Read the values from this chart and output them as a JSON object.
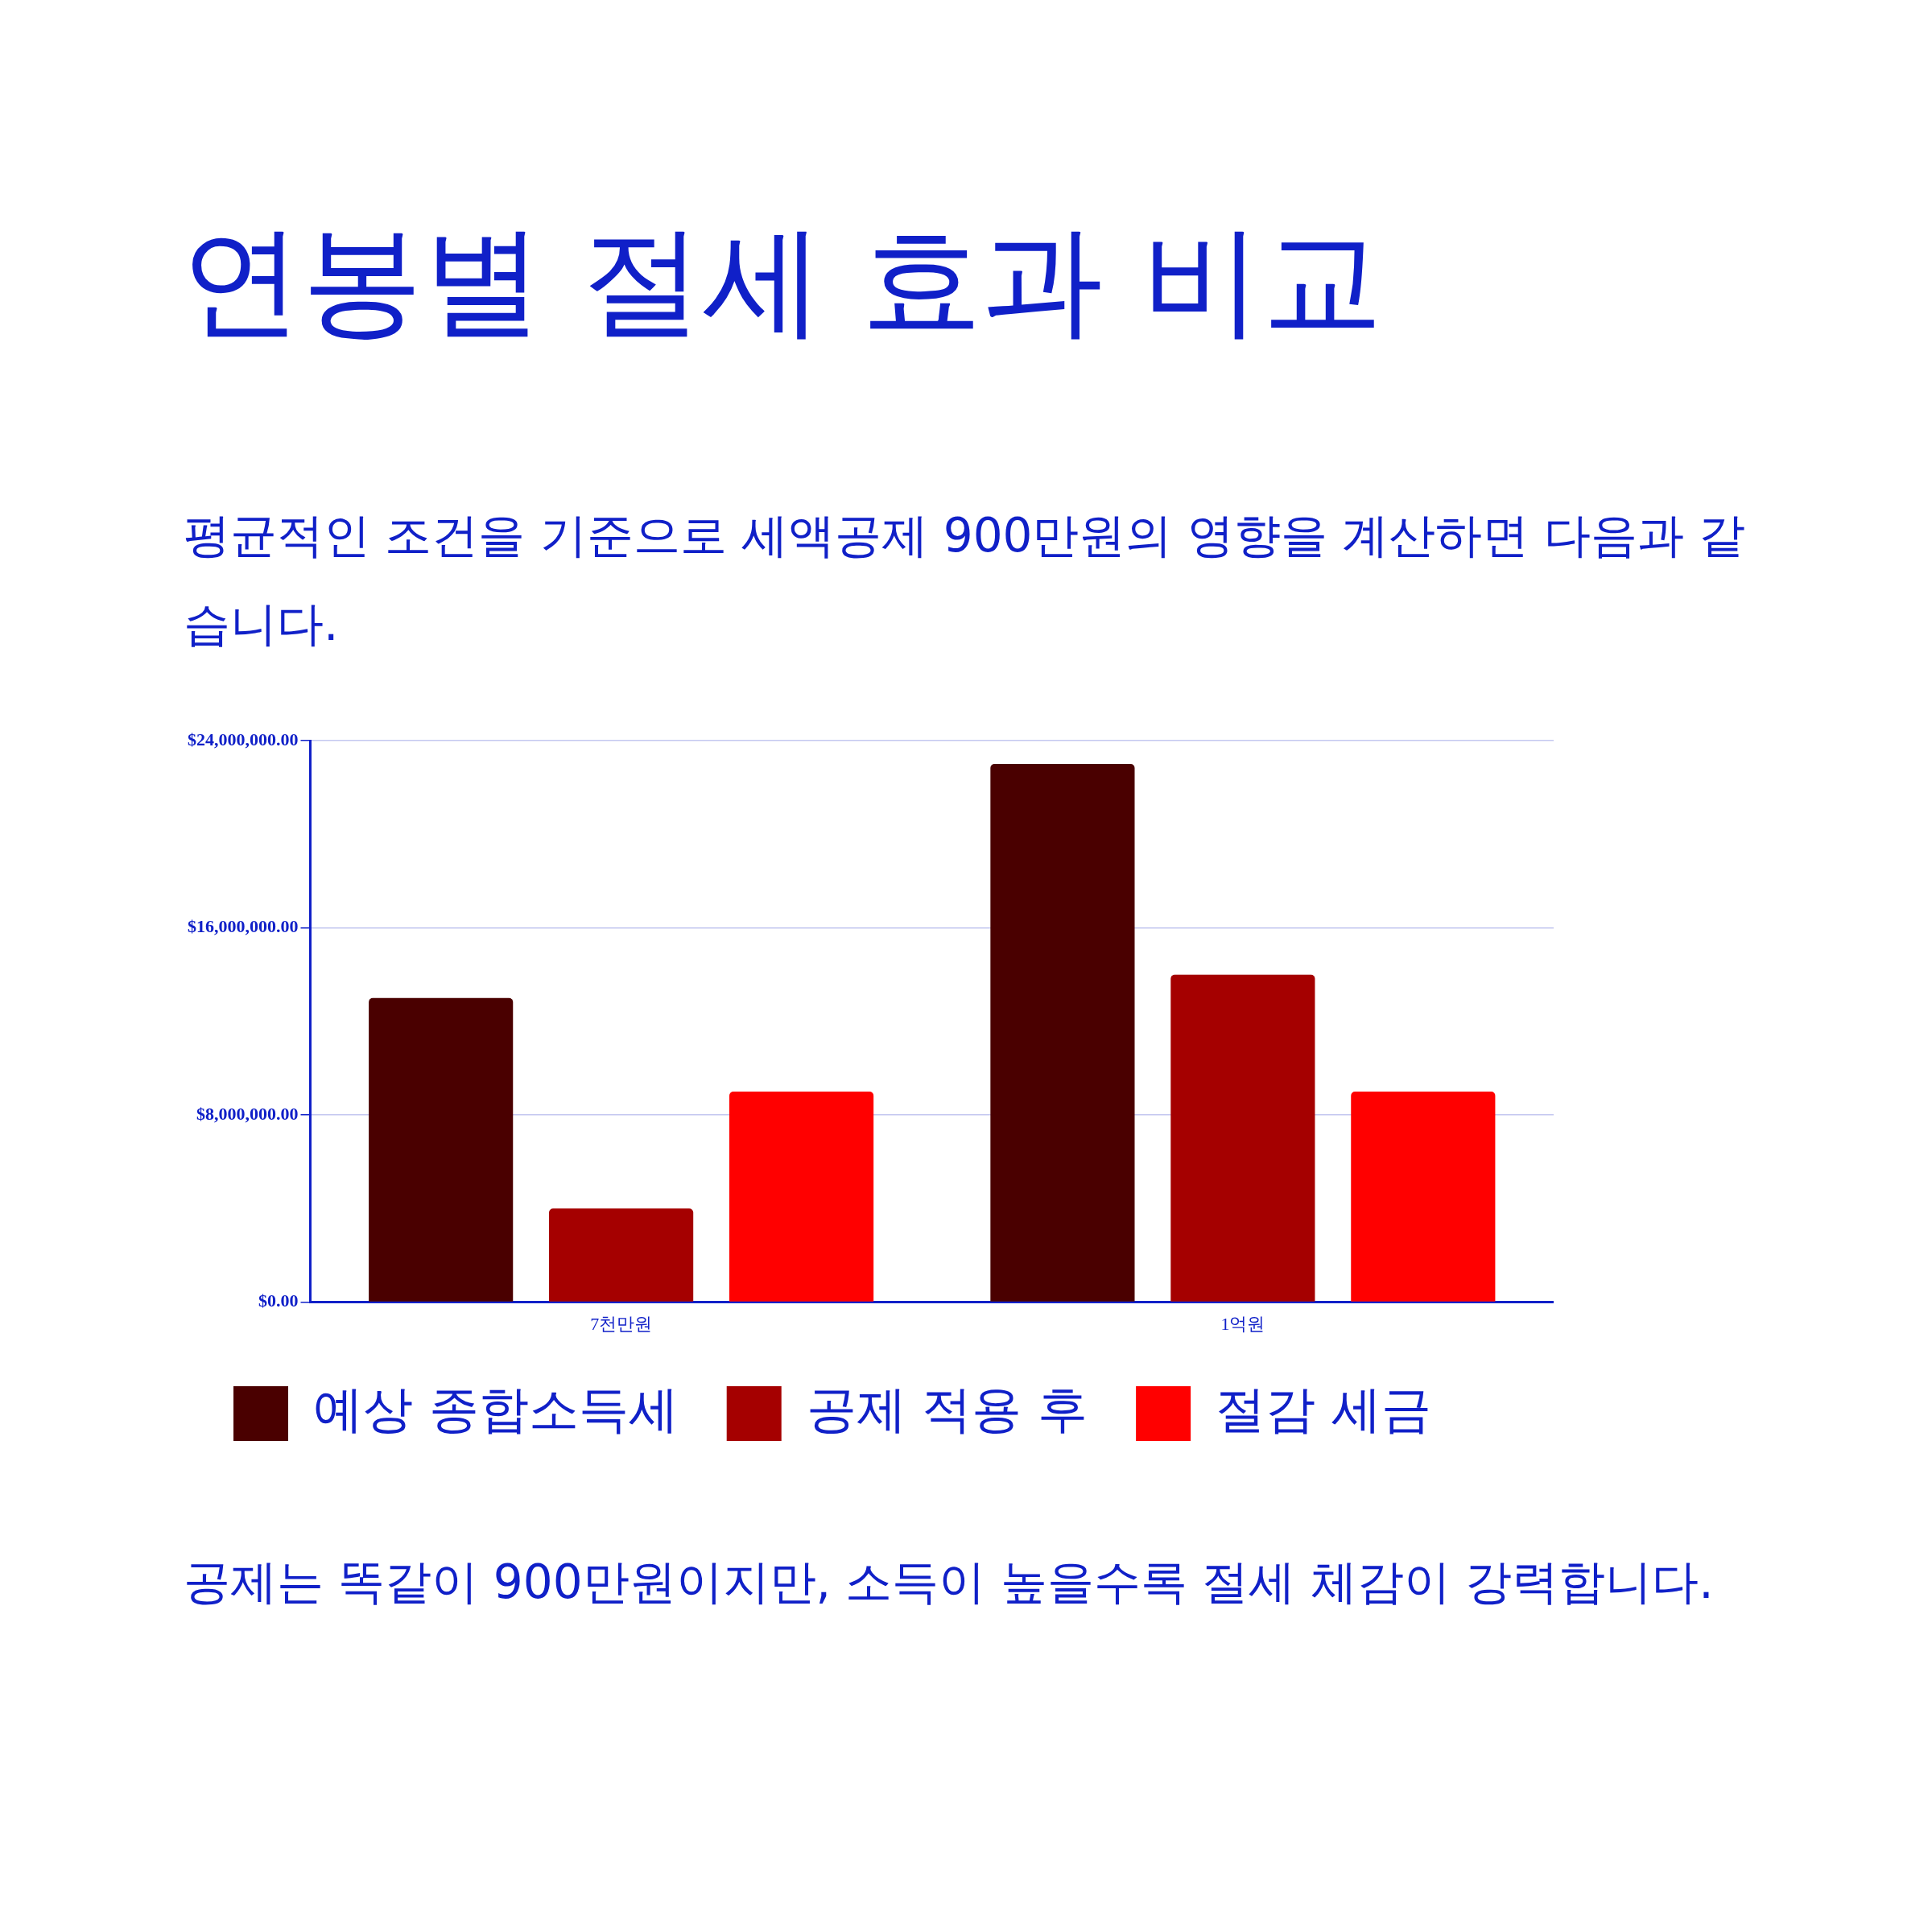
{
  "chart_data": {
    "type": "bar",
    "title": "연봉별 절세 효과 비교",
    "subtitle": "평균적인 조건을 기준으로 세액공제 900만원의 영향을 계산하면 다음과 같습니다.",
    "categories": [
      "7천만원",
      "1억원"
    ],
    "series": [
      {
        "name": "예상 종합소득세",
        "color": "#4a0000",
        "values": [
          13000000,
          23000000
        ]
      },
      {
        "name": "공제 적용 후",
        "color": "#a50000",
        "values": [
          4000000,
          14000000
        ]
      },
      {
        "name": "절감 세금",
        "color": "#ff0000",
        "values": [
          9000000,
          9000000
        ]
      }
    ],
    "ylim": [
      0,
      24000000
    ],
    "yticks": [
      {
        "value": 0,
        "label": "$0.00"
      },
      {
        "value": 8000000,
        "label": "$8,000,000.00"
      },
      {
        "value": 16000000,
        "label": "$16,000,000.00"
      },
      {
        "value": 24000000,
        "label": "$24,000,000.00"
      }
    ],
    "grid": "y",
    "legend": "bottom",
    "annotations": [
      "공제는 똑같이 900만원이지만, 소득이 높을수록 절세 체감이 강력합니다."
    ]
  }
}
